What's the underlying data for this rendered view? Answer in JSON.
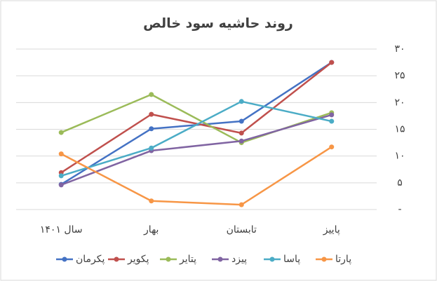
{
  "chart_data": {
    "type": "line",
    "title": "روند حاشیه سود خالص",
    "categories": [
      "سال ۱۴۰۱",
      "بهار",
      "تابستان",
      "پاییز"
    ],
    "series": [
      {
        "name": "پکرمان",
        "color": "#4472c4",
        "values": [
          4.7,
          15.1,
          16.5,
          27.5
        ]
      },
      {
        "name": "پکویر",
        "color": "#c0504d",
        "values": [
          6.9,
          17.8,
          14.3,
          27.5
        ]
      },
      {
        "name": "پتایر",
        "color": "#9bbb59",
        "values": [
          14.4,
          21.5,
          12.5,
          18.1
        ]
      },
      {
        "name": "پیزد",
        "color": "#8064a2",
        "values": [
          4.6,
          11.0,
          12.8,
          17.7
        ]
      },
      {
        "name": "پاسا",
        "color": "#4bacc6",
        "values": [
          6.3,
          11.5,
          20.2,
          16.5
        ]
      },
      {
        "name": "پارتا",
        "color": "#f79646",
        "values": [
          10.4,
          1.6,
          0.9,
          11.7
        ]
      }
    ],
    "ylim": [
      0,
      30
    ],
    "yticks": [
      {
        "value": 0,
        "label": "-"
      },
      {
        "value": 5,
        "label": "۵"
      },
      {
        "value": 10,
        "label": "۱۰"
      },
      {
        "value": 15,
        "label": "۱۵"
      },
      {
        "value": 20,
        "label": "۲۰"
      },
      {
        "value": 25,
        "label": "۲۵"
      },
      {
        "value": 30,
        "label": "۳۰"
      }
    ],
    "grid": true,
    "legend": "bottom"
  }
}
